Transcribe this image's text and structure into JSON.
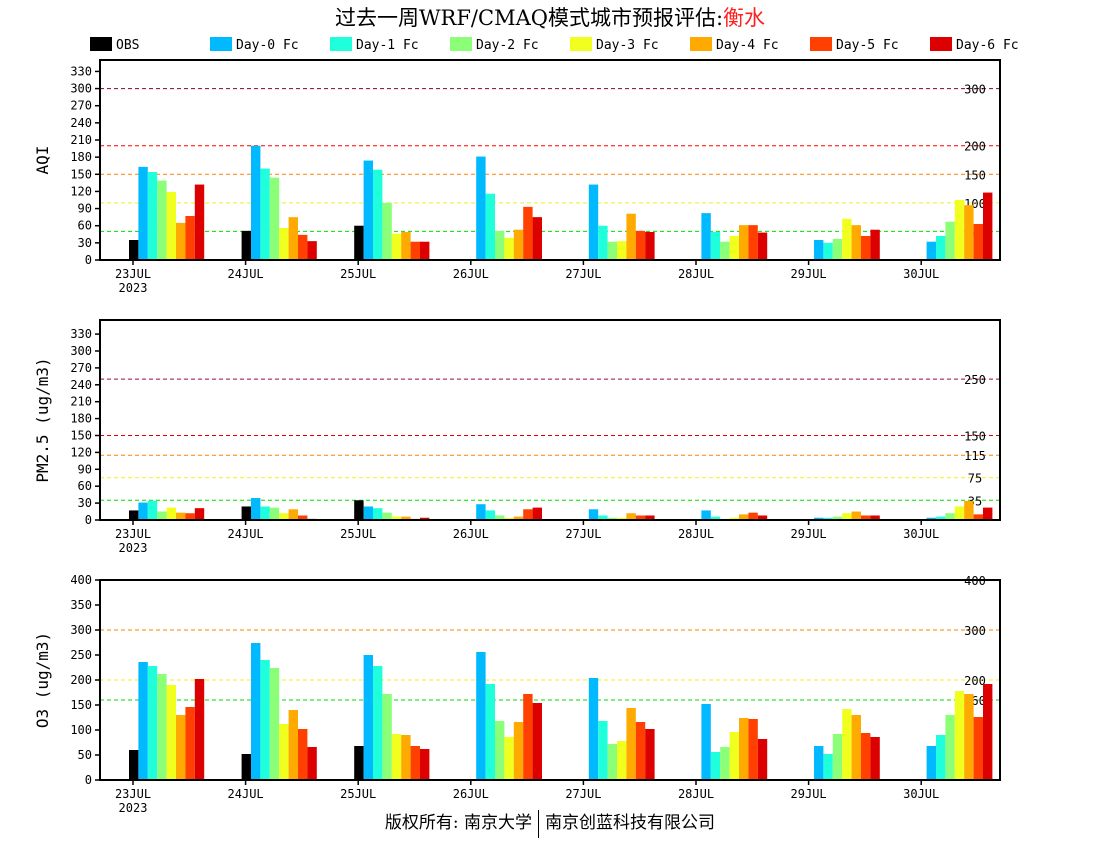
{
  "title": {
    "main": "过去一周WRF/CMAQ模式城市预报评估:",
    "city": "衡水"
  },
  "footer": {
    "left": "版权所有: 南京大学",
    "right": "南京创蓝科技有限公司"
  },
  "legend": [
    {
      "name": "OBS",
      "color": "#000000"
    },
    {
      "name": "Day-0 Fc",
      "color": "#00b9ff"
    },
    {
      "name": "Day-1 Fc",
      "color": "#20ffdc"
    },
    {
      "name": "Day-2 Fc",
      "color": "#8cff78"
    },
    {
      "name": "Day-3 Fc",
      "color": "#f0ff1e"
    },
    {
      "name": "Day-4 Fc",
      "color": "#ffaa00"
    },
    {
      "name": "Day-5 Fc",
      "color": "#ff4000"
    },
    {
      "name": "Day-6 Fc",
      "color": "#dc0000"
    }
  ],
  "chart_data": [
    {
      "type": "bar",
      "ylabel": "AQI",
      "ylim": [
        0,
        350
      ],
      "yticks": [
        0,
        30,
        60,
        90,
        120,
        150,
        180,
        210,
        240,
        270,
        300,
        330
      ],
      "categories": [
        "23JUL",
        "24JUL",
        "25JUL",
        "26JUL",
        "27JUL",
        "28JUL",
        "29JUL",
        "30JUL"
      ],
      "year_label": "2023",
      "ref_lines": [
        {
          "value": 300,
          "label": "300",
          "color": "#800040"
        },
        {
          "value": 200,
          "label": "200",
          "color": "#ff0000"
        },
        {
          "value": 150,
          "label": "150",
          "color": "#ff8000"
        },
        {
          "value": 100,
          "label": "100",
          "color": "#f0f020"
        },
        {
          "value": 50,
          "label": "50",
          "color": "#00dd00"
        }
      ],
      "series": [
        {
          "name": "OBS",
          "values": [
            35,
            51,
            60,
            null,
            null,
            null,
            null,
            null
          ]
        },
        {
          "name": "Day-0 Fc",
          "values": [
            163,
            200,
            174,
            181,
            132,
            82,
            35,
            32
          ]
        },
        {
          "name": "Day-1 Fc",
          "values": [
            154,
            160,
            158,
            116,
            60,
            49,
            30,
            42
          ]
        },
        {
          "name": "Day-2 Fc",
          "values": [
            139,
            144,
            100,
            51,
            32,
            32,
            37,
            67
          ]
        },
        {
          "name": "Day-3 Fc",
          "values": [
            119,
            56,
            46,
            39,
            33,
            42,
            72,
            105
          ]
        },
        {
          "name": "Day-4 Fc",
          "values": [
            65,
            75,
            49,
            53,
            81,
            61,
            61,
            96
          ]
        },
        {
          "name": "Day-5 Fc",
          "values": [
            77,
            44,
            32,
            93,
            51,
            61,
            42,
            63
          ]
        },
        {
          "name": "Day-6 Fc",
          "values": [
            132,
            33,
            32,
            75,
            49,
            48,
            53,
            118
          ]
        }
      ]
    },
    {
      "type": "bar",
      "ylabel": "PM2.5 (ug/m3)",
      "ylim": [
        0,
        355
      ],
      "yticks": [
        0,
        30,
        60,
        90,
        120,
        150,
        180,
        210,
        240,
        270,
        300,
        330
      ],
      "categories": [
        "23JUL",
        "24JUL",
        "25JUL",
        "26JUL",
        "27JUL",
        "28JUL",
        "29JUL",
        "30JUL"
      ],
      "year_label": "2023",
      "ref_lines": [
        {
          "value": 250,
          "label": "250",
          "color": "#a00050"
        },
        {
          "value": 150,
          "label": "150",
          "color": "#e00000"
        },
        {
          "value": 115,
          "label": "115",
          "color": "#ff8000"
        },
        {
          "value": 75,
          "label": "75",
          "color": "#f0f020"
        },
        {
          "value": 35,
          "label": "35",
          "color": "#00dd00"
        }
      ],
      "series": [
        {
          "name": "OBS",
          "values": [
            17,
            24,
            35,
            null,
            null,
            null,
            null,
            null
          ]
        },
        {
          "name": "Day-0 Fc",
          "values": [
            31,
            39,
            24,
            28,
            19,
            17,
            4,
            4
          ]
        },
        {
          "name": "Day-1 Fc",
          "values": [
            34,
            24,
            21,
            17,
            8,
            6,
            4,
            6
          ]
        },
        {
          "name": "Day-2 Fc",
          "values": [
            15,
            22,
            13,
            8,
            4,
            2,
            6,
            12
          ]
        },
        {
          "name": "Day-3 Fc",
          "values": [
            22,
            12,
            6,
            4,
            4,
            4,
            12,
            24
          ]
        },
        {
          "name": "Day-4 Fc",
          "values": [
            13,
            19,
            6,
            6,
            12,
            10,
            15,
            34
          ]
        },
        {
          "name": "Day-5 Fc",
          "values": [
            12,
            8,
            2,
            19,
            8,
            13,
            8,
            10
          ]
        },
        {
          "name": "Day-6 Fc",
          "values": [
            21,
            2,
            4,
            22,
            8,
            8,
            8,
            22
          ]
        }
      ]
    },
    {
      "type": "bar",
      "ylabel": "O3 (ug/m3)",
      "ylim": [
        0,
        400
      ],
      "yticks": [
        0,
        50,
        100,
        150,
        200,
        250,
        300,
        350,
        400
      ],
      "categories": [
        "23JUL",
        "24JUL",
        "25JUL",
        "26JUL",
        "27JUL",
        "28JUL",
        "29JUL",
        "30JUL"
      ],
      "year_label": "2023",
      "ref_lines": [
        {
          "value": 400,
          "label": "400",
          "color": "#e00000"
        },
        {
          "value": 300,
          "label": "300",
          "color": "#ff8000"
        },
        {
          "value": 200,
          "label": "200",
          "color": "#f0f020"
        },
        {
          "value": 160,
          "label": "160",
          "color": "#00dd00"
        }
      ],
      "series": [
        {
          "name": "OBS",
          "values": [
            60,
            52,
            68,
            null,
            null,
            null,
            null,
            null
          ]
        },
        {
          "name": "Day-0 Fc",
          "values": [
            236,
            274,
            250,
            256,
            204,
            152,
            68,
            68
          ]
        },
        {
          "name": "Day-1 Fc",
          "values": [
            228,
            240,
            228,
            192,
            118,
            56,
            52,
            90
          ]
        },
        {
          "name": "Day-2 Fc",
          "values": [
            212,
            224,
            172,
            118,
            72,
            66,
            92,
            130
          ]
        },
        {
          "name": "Day-3 Fc",
          "values": [
            190,
            112,
            92,
            86,
            78,
            96,
            142,
            178
          ]
        },
        {
          "name": "Day-4 Fc",
          "values": [
            130,
            140,
            90,
            116,
            144,
            124,
            130,
            172
          ]
        },
        {
          "name": "Day-5 Fc",
          "values": [
            146,
            102,
            68,
            172,
            116,
            122,
            94,
            126
          ]
        },
        {
          "name": "Day-6 Fc",
          "values": [
            202,
            66,
            62,
            154,
            102,
            82,
            86,
            192
          ]
        }
      ]
    }
  ]
}
